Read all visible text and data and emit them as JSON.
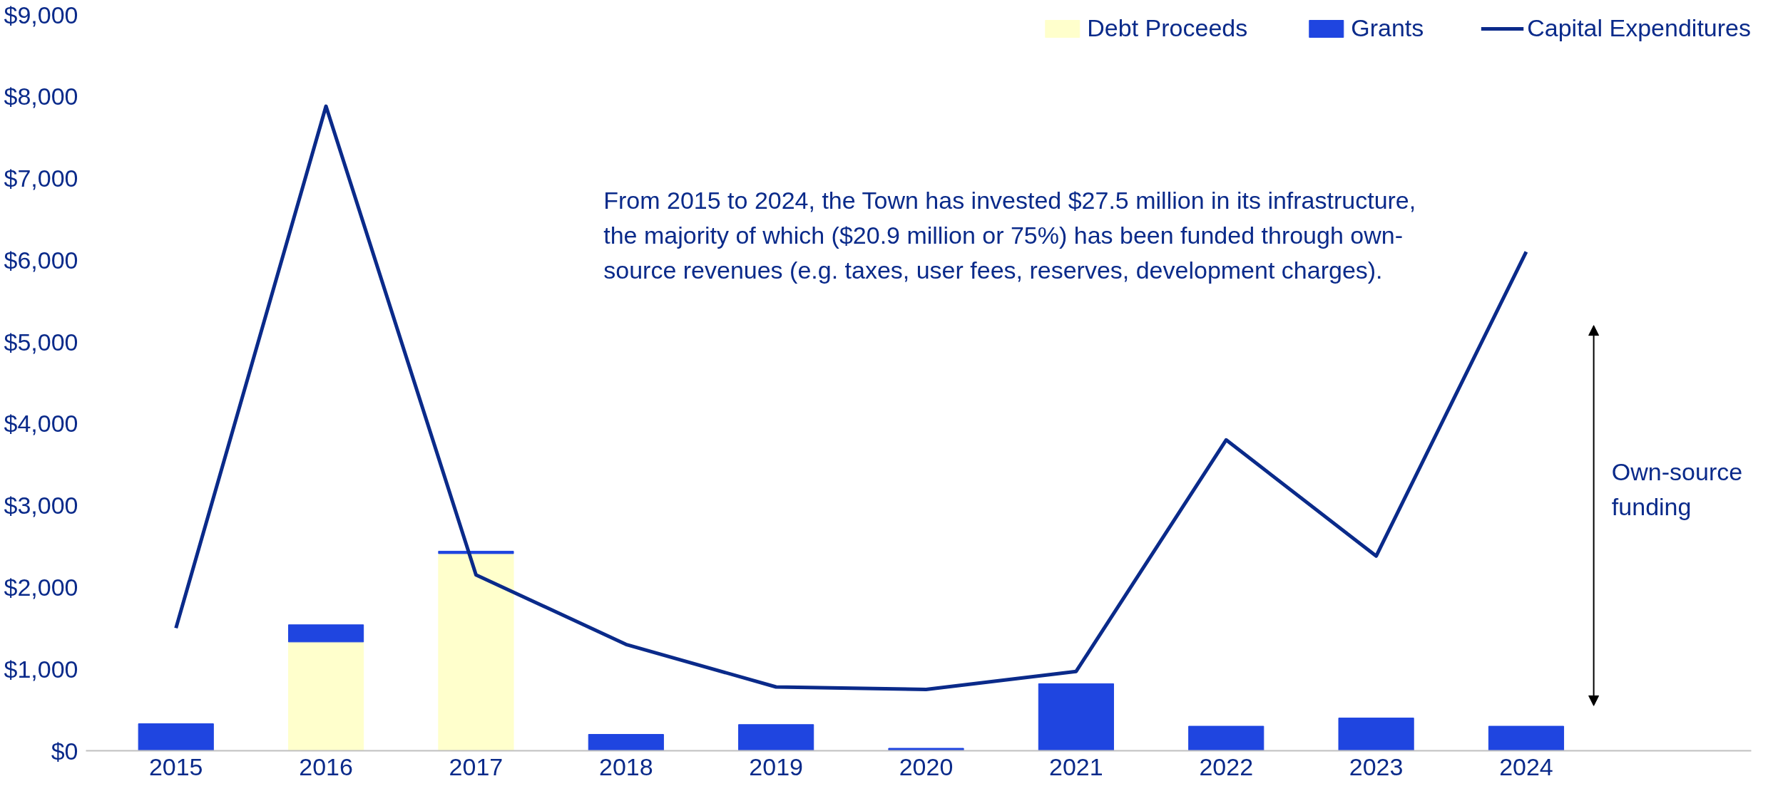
{
  "chart_data": {
    "type": "bar",
    "stacked": true,
    "categories": [
      "2015",
      "2016",
      "2017",
      "2018",
      "2019",
      "2020",
      "2021",
      "2022",
      "2023",
      "2024"
    ],
    "series": [
      {
        "name": "Debt Proceeds",
        "color": "#ffffcc",
        "values": [
          null,
          1330,
          2410,
          null,
          null,
          null,
          null,
          null,
          null,
          null
        ]
      },
      {
        "name": "Grants",
        "color": "#1f45e0",
        "values": [
          330,
          210,
          30,
          200,
          320,
          30,
          820,
          300,
          400,
          300
        ]
      },
      {
        "name": "Capital Expenditures",
        "type": "line",
        "color": "#0a2a8a",
        "values": [
          1500,
          7880,
          2150,
          1300,
          780,
          750,
          970,
          3800,
          2380,
          6100
        ]
      }
    ],
    "ylim": [
      0,
      9000
    ],
    "yticks": [
      {
        "value": 0,
        "label": "$0"
      },
      {
        "value": 1000,
        "label": "$1,000"
      },
      {
        "value": 2000,
        "label": "$2,000"
      },
      {
        "value": 3000,
        "label": "$3,000"
      },
      {
        "value": 4000,
        "label": "$4,000"
      },
      {
        "value": 5000,
        "label": "$5,000"
      },
      {
        "value": 6000,
        "label": "$6,000"
      },
      {
        "value": 7000,
        "label": "$7,000"
      },
      {
        "value": 8000,
        "label": "$8,000"
      },
      {
        "value": 9000,
        "label": "$9,000"
      }
    ],
    "annotations": [
      "From 2015 to 2024, the Town has invested $27.5 million in its infrastructure,\nthe majority of which ($20.9 million or 75%) has been funded through own-\nsource revenues (e.g. taxes, user fees, reserves, development charges).",
      "Own-source\nfunding"
    ],
    "legend": "top right",
    "grid": false
  }
}
